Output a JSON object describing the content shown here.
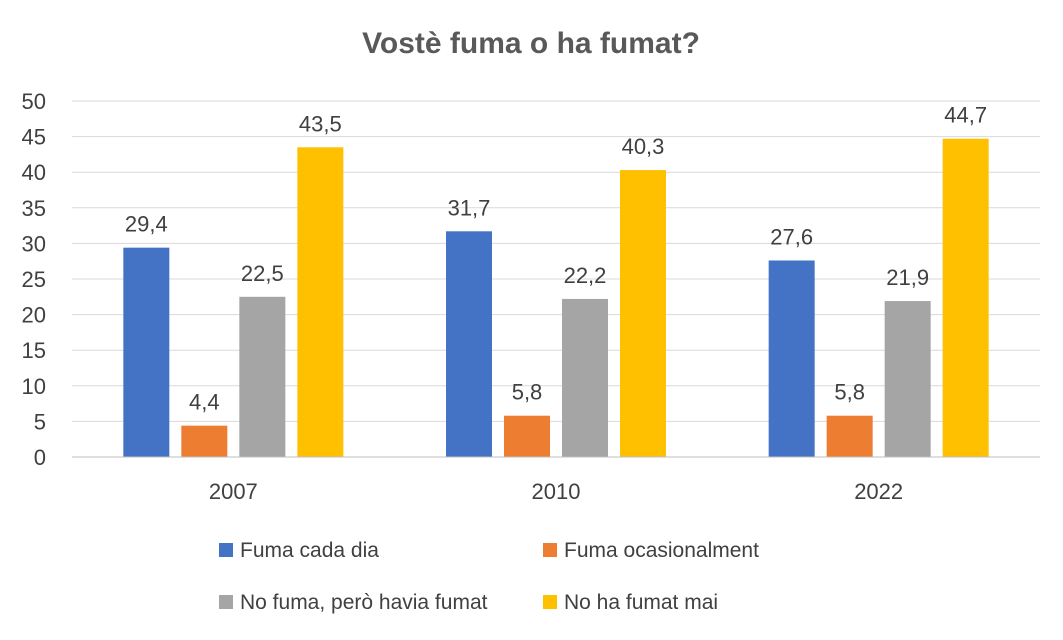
{
  "chart_data": {
    "type": "bar",
    "title": "Vostè fuma o ha fumat?",
    "xlabel": "",
    "ylabel": "",
    "categories": [
      "2007",
      "2010",
      "2022"
    ],
    "ylim": [
      0,
      50
    ],
    "yticks": [
      0,
      5,
      10,
      15,
      20,
      25,
      30,
      35,
      40,
      45,
      50
    ],
    "grid": true,
    "legend_position": "bottom",
    "series": [
      {
        "name": "Fuma cada dia",
        "color": "#4472C4",
        "values": [
          29.4,
          31.7,
          27.6
        ],
        "labels": [
          "29,4",
          "31,7",
          "27,6"
        ]
      },
      {
        "name": "Fuma ocasionalment",
        "color": "#ED7D31",
        "values": [
          4.4,
          5.8,
          5.8
        ],
        "labels": [
          "4,4",
          "5,8",
          "5,8"
        ]
      },
      {
        "name": "No fuma, però havia fumat",
        "color": "#A5A5A5",
        "values": [
          22.5,
          22.2,
          21.9
        ],
        "labels": [
          "22,5",
          "22,2",
          "21,9"
        ]
      },
      {
        "name": "No ha fumat mai",
        "color": "#FFC000",
        "values": [
          43.5,
          40.3,
          44.7
        ],
        "labels": [
          "43,5",
          "40,3",
          "44,7"
        ]
      }
    ]
  }
}
